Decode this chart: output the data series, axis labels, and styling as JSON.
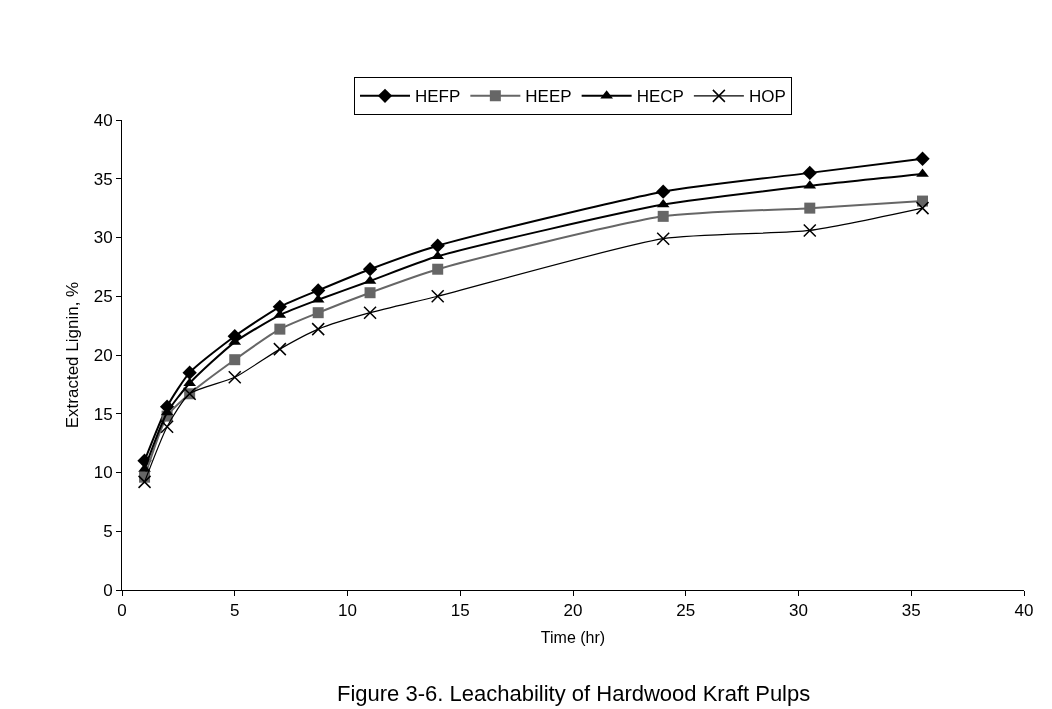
{
  "chart_data": {
    "type": "line",
    "xlabel": "Time (hr)",
    "ylabel": "Extracted Lignin, %",
    "annotations": [
      "Figure 3-6. Leachability of Hardwood Kraft Pulps"
    ],
    "x": [
      1,
      2,
      3,
      5,
      7,
      8.7,
      11,
      14,
      24,
      30.5,
      35.5
    ],
    "series": [
      {
        "name": "HEFP",
        "color": "#000000",
        "marker": "diamond",
        "values": [
          11,
          15.6,
          18.5,
          21.6,
          24.1,
          25.5,
          27.3,
          29.3,
          33.9,
          35.5,
          36.7
        ]
      },
      {
        "name": "HEEP",
        "color": "#666666",
        "marker": "square",
        "values": [
          9.6,
          14.8,
          16.7,
          19.6,
          22.2,
          23.6,
          25.3,
          27.3,
          31.8,
          32.5,
          33.1
        ]
      },
      {
        "name": "HECP",
        "color": "#000000",
        "marker": "triangle",
        "values": [
          10.3,
          15.1,
          17.6,
          21.1,
          23.4,
          24.7,
          26.3,
          28.4,
          32.8,
          34.4,
          35.4
        ]
      },
      {
        "name": "HOP",
        "color": "#000000",
        "marker": "cross",
        "values": [
          9.2,
          13.9,
          16.7,
          18.1,
          20.5,
          22.2,
          23.6,
          25,
          29.9,
          30.6,
          32.5
        ]
      }
    ],
    "xlim": [
      0,
      40
    ],
    "xticks": [
      0,
      5,
      10,
      15,
      20,
      25,
      30,
      35,
      40
    ],
    "ylim": [
      0,
      40
    ],
    "yticks": [
      0,
      5,
      10,
      15,
      20,
      25,
      30,
      35,
      40
    ],
    "legend": "top",
    "line_style": "solid"
  }
}
